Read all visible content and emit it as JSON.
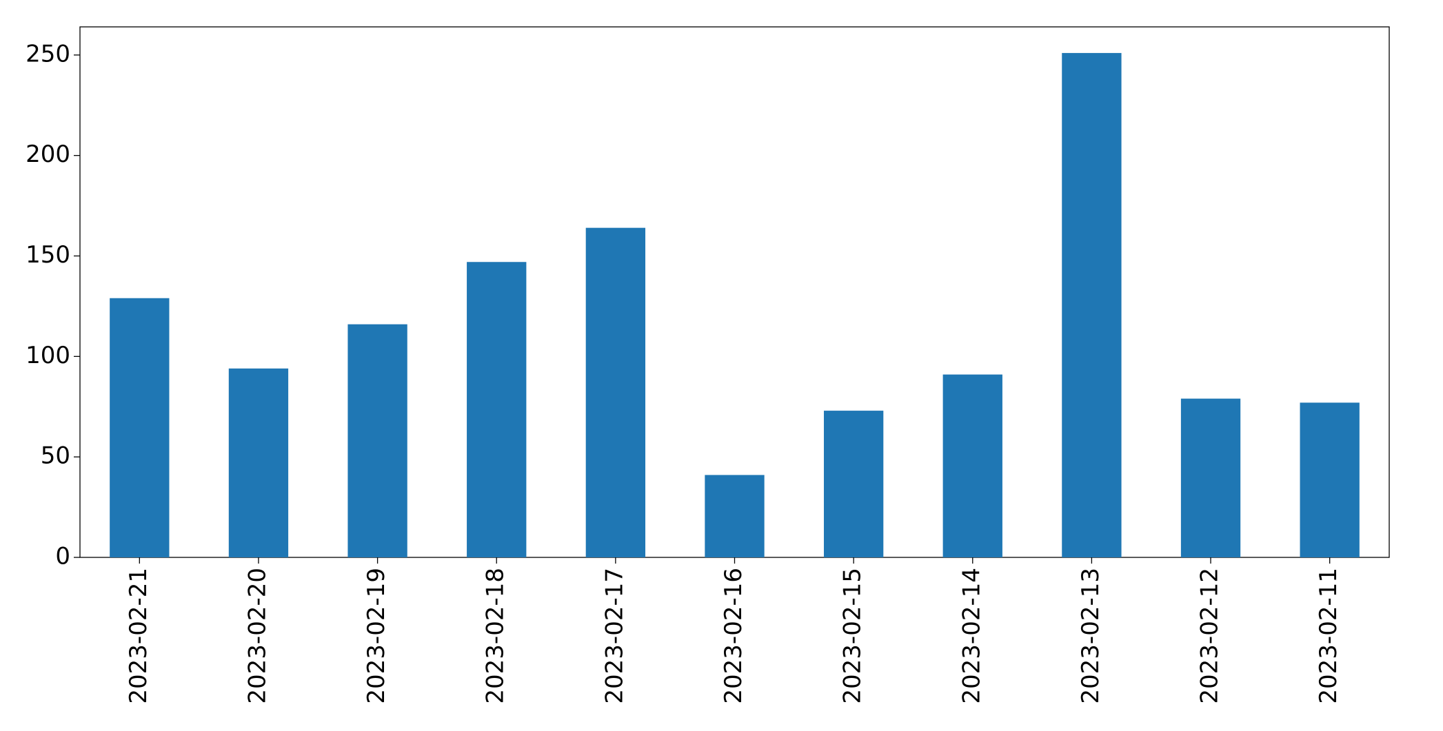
{
  "chart_data": {
    "type": "bar",
    "categories": [
      "2023-02-21",
      "2023-02-20",
      "2023-02-19",
      "2023-02-18",
      "2023-02-17",
      "2023-02-16",
      "2023-02-15",
      "2023-02-14",
      "2023-02-13",
      "2023-02-12",
      "2023-02-11"
    ],
    "values": [
      129,
      94,
      116,
      147,
      164,
      41,
      73,
      91,
      251,
      79,
      77
    ],
    "color": "#1f77b4",
    "ylim": [
      0,
      264
    ],
    "yticks": [
      0,
      50,
      100,
      150,
      200,
      250
    ],
    "grid": false
  }
}
